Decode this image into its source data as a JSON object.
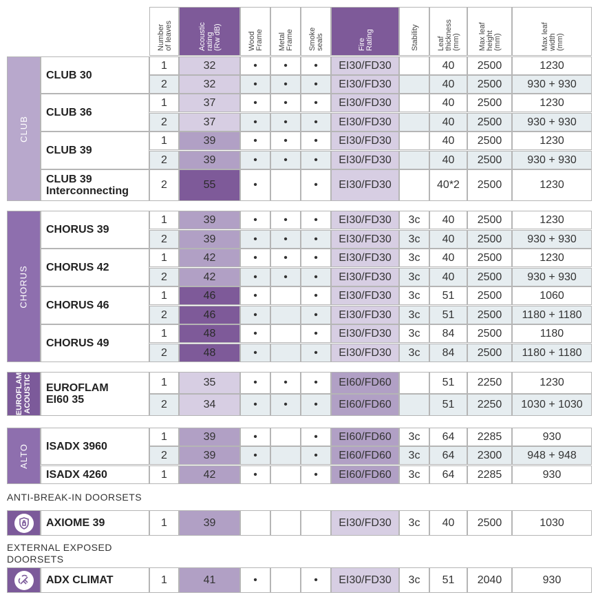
{
  "colors": {
    "purple_dark": "#7e5a99",
    "purple_mid": "#b1a0c5",
    "purple_light": "#d7cee3",
    "group_club": "#b8a8cc",
    "group_chorus": "#8e6fae",
    "group_dark": "#7c5a9a",
    "row_alt": "#e6edf0"
  },
  "headers": [
    "Number\nof leaves",
    "Acoustic\nrating\n(Rw dB)",
    "Wood\nFrame",
    "Metal\nFrame",
    "Smoke\nseals",
    "Fire\nRating",
    "Stability",
    "Leaf\nthickness\n(mm)",
    "Max leaf\nheight\n(mm)",
    "Max leaf\nwidth\n(mm)"
  ],
  "dot": "•",
  "groups": {
    "club": "CLUB",
    "chorus": "CHORUS",
    "euroflam": "EUROFLAM\nACOUSTIC",
    "alto": "ALTO"
  },
  "sections": {
    "anti_break_in": "ANTI-BREAK-IN DOORSETS",
    "external": "EXTERNAL EXPOSED\nDOORSETS"
  },
  "icons": {
    "axiome": "shield-lock-icon",
    "adx_climat": "weather-icon"
  },
  "products": [
    {
      "name": "CLUB 30",
      "rows": [
        {
          "leaves": "1",
          "rw": "32",
          "wood": "•",
          "metal": "•",
          "smoke": "•",
          "fire": "EI30/FD30",
          "stability": "",
          "thickness": "40",
          "height": "2500",
          "width": "1230"
        },
        {
          "leaves": "2",
          "rw": "32",
          "wood": "•",
          "metal": "•",
          "smoke": "•",
          "fire": "EI30/FD30",
          "stability": "",
          "thickness": "40",
          "height": "2500",
          "width": "930 + 930"
        }
      ]
    },
    {
      "name": "CLUB 36",
      "rows": [
        {
          "leaves": "1",
          "rw": "37",
          "wood": "•",
          "metal": "•",
          "smoke": "•",
          "fire": "EI30/FD30",
          "stability": "",
          "thickness": "40",
          "height": "2500",
          "width": "1230"
        },
        {
          "leaves": "2",
          "rw": "37",
          "wood": "•",
          "metal": "•",
          "smoke": "•",
          "fire": "EI30/FD30",
          "stability": "",
          "thickness": "40",
          "height": "2500",
          "width": "930 + 930"
        }
      ]
    },
    {
      "name": "CLUB 39",
      "rows": [
        {
          "leaves": "1",
          "rw": "39",
          "wood": "•",
          "metal": "•",
          "smoke": "•",
          "fire": "EI30/FD30",
          "stability": "",
          "thickness": "40",
          "height": "2500",
          "width": "1230"
        },
        {
          "leaves": "2",
          "rw": "39",
          "wood": "•",
          "metal": "•",
          "smoke": "•",
          "fire": "EI30/FD30",
          "stability": "",
          "thickness": "40",
          "height": "2500",
          "width": "930 + 930"
        }
      ]
    },
    {
      "name": "CLUB 39\nInterconnecting",
      "rows": [
        {
          "leaves": "2",
          "rw": "55",
          "wood": "•",
          "metal": "",
          "smoke": "•",
          "fire": "EI30/FD30",
          "stability": "",
          "thickness": "40*2",
          "height": "2500",
          "width": "1230"
        }
      ]
    },
    {
      "name": "CHORUS 39",
      "rows": [
        {
          "leaves": "1",
          "rw": "39",
          "wood": "•",
          "metal": "•",
          "smoke": "•",
          "fire": "EI30/FD30",
          "stability": "3c",
          "thickness": "40",
          "height": "2500",
          "width": "1230"
        },
        {
          "leaves": "2",
          "rw": "39",
          "wood": "•",
          "metal": "•",
          "smoke": "•",
          "fire": "EI30/FD30",
          "stability": "3c",
          "thickness": "40",
          "height": "2500",
          "width": "930 + 930"
        }
      ]
    },
    {
      "name": "CHORUS 42",
      "rows": [
        {
          "leaves": "1",
          "rw": "42",
          "wood": "•",
          "metal": "•",
          "smoke": "•",
          "fire": "EI30/FD30",
          "stability": "3c",
          "thickness": "40",
          "height": "2500",
          "width": "1230"
        },
        {
          "leaves": "2",
          "rw": "42",
          "wood": "•",
          "metal": "•",
          "smoke": "•",
          "fire": "EI30/FD30",
          "stability": "3c",
          "thickness": "40",
          "height": "2500",
          "width": "930 + 930"
        }
      ]
    },
    {
      "name": "CHORUS 46",
      "rows": [
        {
          "leaves": "1",
          "rw": "46",
          "wood": "•",
          "metal": "",
          "smoke": "•",
          "fire": "EI30/FD30",
          "stability": "3c",
          "thickness": "51",
          "height": "2500",
          "width": "1060"
        },
        {
          "leaves": "2",
          "rw": "46",
          "wood": "•",
          "metal": "",
          "smoke": "•",
          "fire": "EI30/FD30",
          "stability": "3c",
          "thickness": "51",
          "height": "2500",
          "width": "1180 + 1180"
        }
      ]
    },
    {
      "name": "CHORUS 49",
      "rows": [
        {
          "leaves": "1",
          "rw": "48",
          "wood": "•",
          "metal": "",
          "smoke": "•",
          "fire": "EI30/FD30",
          "stability": "3c",
          "thickness": "84",
          "height": "2500",
          "width": "1180"
        },
        {
          "leaves": "2",
          "rw": "48",
          "wood": "•",
          "metal": "",
          "smoke": "•",
          "fire": "EI30/FD30",
          "stability": "3c",
          "thickness": "84",
          "height": "2500",
          "width": "1180 + 1180"
        }
      ]
    },
    {
      "name": "EUROFLAM\nEI60 35",
      "rows": [
        {
          "leaves": "1",
          "rw": "35",
          "wood": "•",
          "metal": "•",
          "smoke": "•",
          "fire": "EI60/FD60",
          "stability": "",
          "thickness": "51",
          "height": "2250",
          "width": "1230"
        },
        {
          "leaves": "2",
          "rw": "34",
          "wood": "•",
          "metal": "•",
          "smoke": "•",
          "fire": "EI60/FD60",
          "stability": "",
          "thickness": "51",
          "height": "2250",
          "width": "1030 + 1030"
        }
      ]
    },
    {
      "name": "ISADX 3960",
      "rows": [
        {
          "leaves": "1",
          "rw": "39",
          "wood": "•",
          "metal": "",
          "smoke": "•",
          "fire": "EI60/FD60",
          "stability": "3c",
          "thickness": "64",
          "height": "2285",
          "width": "930"
        },
        {
          "leaves": "2",
          "rw": "39",
          "wood": "•",
          "metal": "",
          "smoke": "•",
          "fire": "EI60/FD60",
          "stability": "3c",
          "thickness": "64",
          "height": "2300",
          "width": "948 + 948"
        }
      ]
    },
    {
      "name": "ISADX 4260",
      "rows": [
        {
          "leaves": "1",
          "rw": "42",
          "wood": "•",
          "metal": "",
          "smoke": "•",
          "fire": "EI60/FD60",
          "stability": "3c",
          "thickness": "64",
          "height": "2285",
          "width": "930"
        }
      ]
    },
    {
      "name": "AXIOME 39",
      "rows": [
        {
          "leaves": "1",
          "rw": "39",
          "wood": "",
          "metal": "",
          "smoke": "",
          "fire": "EI30/FD30",
          "stability": "3c",
          "thickness": "40",
          "height": "2500",
          "width": "1030"
        }
      ]
    },
    {
      "name": "ADX CLIMAT",
      "rows": [
        {
          "leaves": "1",
          "rw": "41",
          "wood": "•",
          "metal": "",
          "smoke": "•",
          "fire": "EI30/FD30",
          "stability": "3c",
          "thickness": "51",
          "height": "2040",
          "width": "930"
        }
      ]
    }
  ]
}
